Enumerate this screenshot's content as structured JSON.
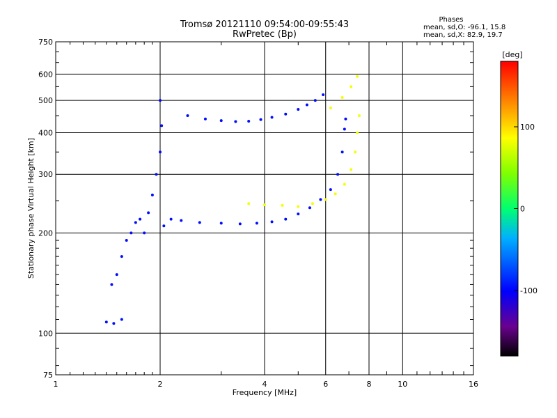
{
  "chart_data": {
    "type": "scatter",
    "title": "Tromsø 20121110 09:54:00-09:55:43",
    "subtitle": "RwPretec (Bp)",
    "xlabel": "Frequency [MHz]",
    "ylabel": "Stationary phase Virtual Height [km]",
    "x_scale": "log2",
    "y_scale": "log",
    "xlim": [
      1,
      16
    ],
    "ylim": [
      75,
      750
    ],
    "x_ticks": [
      {
        "value": 1,
        "label": "1"
      },
      {
        "value": 2,
        "label": "2"
      },
      {
        "value": 4,
        "label": "4"
      },
      {
        "value": 6,
        "label": "6"
      },
      {
        "value": 8,
        "label": "8"
      },
      {
        "value": 10,
        "label": "10"
      },
      {
        "value": 16,
        "label": "16"
      }
    ],
    "y_ticks": [
      {
        "value": 75,
        "label": "75"
      },
      {
        "value": 100,
        "label": "100"
      },
      {
        "value": 200,
        "label": "200"
      },
      {
        "value": 300,
        "label": "300"
      },
      {
        "value": 400,
        "label": "400"
      },
      {
        "value": 500,
        "label": "500"
      },
      {
        "value": 600,
        "label": "600"
      },
      {
        "value": 750,
        "label": "750"
      }
    ],
    "grid": true,
    "stats": {
      "heading": "Phases",
      "line_o": "mean, sd,O: -96.1, 15.8",
      "line_x": "mean, sd,X:  82.9, 19.7"
    },
    "colorbar": {
      "label": "[deg]",
      "range": [
        -180,
        180
      ],
      "ticks": [
        {
          "value": 100,
          "label": "100"
        },
        {
          "value": 0,
          "label": "0"
        },
        {
          "value": -100,
          "label": "-100"
        }
      ]
    },
    "series": [
      {
        "mode": "O",
        "phase": -96,
        "points": [
          [
            1.4,
            108
          ],
          [
            1.47,
            107
          ],
          [
            1.55,
            110
          ],
          [
            1.45,
            140
          ],
          [
            1.5,
            150
          ],
          [
            1.55,
            170
          ],
          [
            1.6,
            190
          ],
          [
            1.65,
            200
          ],
          [
            1.7,
            215
          ],
          [
            1.75,
            220
          ],
          [
            1.8,
            200
          ],
          [
            1.85,
            230
          ],
          [
            1.9,
            260
          ],
          [
            1.95,
            300
          ],
          [
            2.0,
            350
          ],
          [
            2.02,
            420
          ],
          [
            2.0,
            500
          ],
          [
            2.05,
            210
          ],
          [
            2.15,
            220
          ],
          [
            2.3,
            218
          ],
          [
            2.6,
            215
          ],
          [
            3.0,
            214
          ],
          [
            3.4,
            213
          ],
          [
            3.8,
            214
          ],
          [
            4.2,
            216
          ],
          [
            4.6,
            220
          ],
          [
            5.0,
            228
          ],
          [
            5.4,
            238
          ],
          [
            5.8,
            252
          ],
          [
            6.2,
            270
          ],
          [
            6.5,
            300
          ],
          [
            6.7,
            350
          ],
          [
            6.8,
            410
          ],
          [
            6.85,
            440
          ],
          [
            2.4,
            450
          ],
          [
            2.7,
            440
          ],
          [
            3.0,
            435
          ],
          [
            3.3,
            432
          ],
          [
            3.6,
            433
          ],
          [
            3.9,
            438
          ],
          [
            4.2,
            445
          ],
          [
            4.6,
            455
          ],
          [
            5.0,
            470
          ],
          [
            5.3,
            485
          ],
          [
            5.6,
            500
          ],
          [
            5.9,
            520
          ]
        ]
      },
      {
        "mode": "X",
        "phase": 83,
        "points": [
          [
            3.6,
            245
          ],
          [
            4.0,
            243
          ],
          [
            4.5,
            242
          ],
          [
            5.0,
            240
          ],
          [
            5.5,
            245
          ],
          [
            6.0,
            252
          ],
          [
            6.4,
            262
          ],
          [
            6.8,
            280
          ],
          [
            7.1,
            310
          ],
          [
            7.3,
            350
          ],
          [
            7.4,
            400
          ],
          [
            7.5,
            450
          ],
          [
            6.2,
            475
          ],
          [
            6.7,
            510
          ],
          [
            7.1,
            550
          ],
          [
            7.4,
            590
          ]
        ]
      }
    ]
  }
}
